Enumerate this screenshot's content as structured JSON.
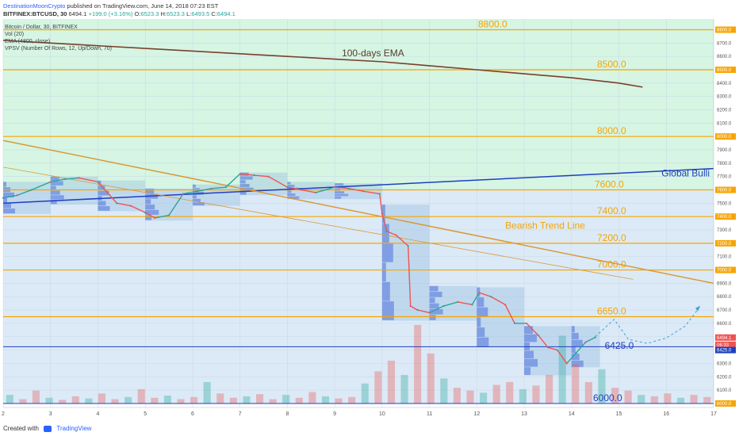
{
  "header": {
    "author": "DestinationMoonCrypto",
    "published": "published on TradingView.com, June 14, 2018 07:23 EST",
    "symbol": "BITFINEX:BTCUSD, 30",
    "last": "6494.1",
    "change": "+199.0 (+3.16%)",
    "o_label": "O:",
    "o": "6523.3",
    "h_label": "H:",
    "h": "6523.3",
    "l_label": "L:",
    "l": "6493.5",
    "c_label": "C:",
    "c": "6494.1"
  },
  "indicators": [
    "Bitcoin / Dollar, 30, BITFINEX",
    "Vol (20)",
    "EMA (4800, close)",
    "VPSV (Number Of Rows, 12, Up/Down, 70)"
  ],
  "footer": {
    "created": "Created with",
    "brand": "TradingView"
  },
  "colors": {
    "level_line": "#f7a400",
    "support_line": "#1f3fbf",
    "ema": "#7b3f2b",
    "trend": "#d99a3a",
    "up": "#26a69a",
    "down": "#ef5350",
    "upper_zone": "#d6f5e3",
    "lower_zone": "#dbeaf6"
  },
  "chart_data": {
    "type": "line",
    "title": "",
    "xlabel": "",
    "ylabel": "",
    "x_ticks": [
      "2",
      "3",
      "4",
      "5",
      "6",
      "7",
      "8",
      "9",
      "10",
      "11",
      "12",
      "13",
      "14",
      "15",
      "16",
      "17"
    ],
    "y_ticks": [
      "6000.0",
      "6100.0",
      "6200.0",
      "6300.0",
      "6400.0",
      "6500.0",
      "6600.0",
      "6700.0",
      "6800.0",
      "6900.0",
      "7000.0",
      "7100.0",
      "7200.0",
      "7300.0",
      "7400.0",
      "7500.0",
      "7600.0",
      "7700.0",
      "7800.0",
      "7900.0",
      "8000.0",
      "8100.0",
      "8200.0",
      "8300.0",
      "8400.0",
      "8500.0",
      "8600.0",
      "8700.0",
      "8800.0"
    ],
    "ylim": [
      5970,
      8880
    ],
    "xlim": [
      2,
      17
    ],
    "levels": [
      {
        "label": "8800.0",
        "value": 8800
      },
      {
        "label": "8500.0",
        "value": 8500
      },
      {
        "label": "8000.0",
        "value": 8000
      },
      {
        "label": "7600.0",
        "value": 7600
      },
      {
        "label": "7400.0",
        "value": 7400
      },
      {
        "label": "7200.0",
        "value": 7200
      },
      {
        "label": "7000.0",
        "value": 7000
      },
      {
        "label": "6650.0",
        "value": 6650
      },
      {
        "label": "6425.0",
        "value": 6425
      },
      {
        "label": "6000.0",
        "value": 6000
      }
    ],
    "price_series": {
      "name": "",
      "x": [
        2.0,
        2.3,
        2.6,
        3.0,
        3.3,
        3.6,
        4.0,
        4.2,
        4.4,
        4.7,
        5.0,
        5.2,
        5.5,
        5.8,
        6.1,
        6.4,
        6.7,
        7.0,
        7.3,
        7.6,
        8.0,
        8.3,
        8.6,
        9.0,
        9.3,
        9.6,
        9.95,
        10.0,
        10.1,
        10.3,
        10.55,
        10.6,
        10.75,
        11.0,
        11.3,
        11.6,
        11.9,
        12.05,
        12.3,
        12.6,
        12.8,
        13.05,
        13.3,
        13.5,
        13.7,
        13.9,
        14.1,
        14.3,
        14.5
      ],
      "y": [
        7540,
        7560,
        7600,
        7660,
        7680,
        7690,
        7660,
        7580,
        7500,
        7480,
        7430,
        7390,
        7410,
        7570,
        7590,
        7610,
        7620,
        7720,
        7710,
        7700,
        7620,
        7600,
        7580,
        7620,
        7610,
        7590,
        7570,
        7420,
        7290,
        7260,
        7180,
        6730,
        6700,
        6680,
        6730,
        6760,
        6740,
        6830,
        6800,
        6740,
        6600,
        6600,
        6510,
        6420,
        6400,
        6300,
        6380,
        6460,
        6495
      ]
    },
    "ema": {
      "name": "100-days EMA",
      "x": [
        2,
        3,
        4,
        5,
        6,
        7,
        8,
        9,
        10,
        11,
        12,
        13,
        14,
        15,
        15.5
      ],
      "y": [
        8720,
        8700,
        8680,
        8660,
        8640,
        8620,
        8600,
        8580,
        8560,
        8530,
        8500,
        8470,
        8440,
        8400,
        8370
      ]
    },
    "trendlines": [
      {
        "name": "Global Bullish",
        "x": [
          2,
          17
        ],
        "y": [
          7500,
          7760
        ]
      },
      {
        "name": "Bearish Trend Line",
        "x": [
          2,
          17
        ],
        "y": [
          7970,
          6900
        ]
      },
      {
        "name": "",
        "x": [
          2,
          15.3
        ],
        "y": [
          7770,
          6930
        ]
      }
    ],
    "projection": {
      "x": [
        14.5,
        14.9,
        15.2,
        15.6,
        16.0,
        16.4,
        16.7
      ],
      "y": [
        6500,
        6630,
        6480,
        6450,
        6490,
        6580,
        6720
      ]
    },
    "annotations": [
      {
        "text": "100-days EMA",
        "x": 9.15,
        "y": 8600,
        "color": "#5b3a2a"
      },
      {
        "text": "Global Bulli",
        "x": 15.9,
        "y": 7700,
        "color": "#1f3fbf"
      },
      {
        "text": "Bearish Trend Line",
        "x": 12.6,
        "y": 7310,
        "color": "#f7a400"
      },
      {
        "text": "6425.0",
        "x": 14.7,
        "y": 6410,
        "color": "#1f3fbf"
      }
    ],
    "markers": [
      {
        "label": "6494.1",
        "value": 6494,
        "color": "#ef5350"
      },
      {
        "label": "06:33",
        "value": 6440,
        "color": "#ef5350"
      },
      {
        "label": "6425.0",
        "value": 6400,
        "color": "#1f3fbf"
      }
    ],
    "volume": [
      12,
      6,
      18,
      8,
      5,
      10,
      7,
      14,
      6,
      9,
      20,
      8,
      11,
      6,
      9,
      30,
      14,
      8,
      10,
      13,
      6,
      12,
      8,
      16,
      10,
      7,
      9,
      28,
      45,
      60,
      40,
      110,
      70,
      35,
      22,
      18,
      15,
      26,
      30,
      20,
      25,
      40,
      95,
      55,
      30,
      48,
      22,
      18,
      12,
      10,
      14,
      8,
      12,
      9
    ],
    "vp_zones": [
      {
        "x0": 2.0,
        "x1": 3.0,
        "y0": 7420,
        "y1": 7660
      },
      {
        "x0": 3.0,
        "x1": 4.0,
        "y0": 7490,
        "y1": 7700
      },
      {
        "x0": 4.0,
        "x1": 5.0,
        "y0": 7440,
        "y1": 7670
      },
      {
        "x0": 5.0,
        "x1": 6.0,
        "y0": 7370,
        "y1": 7610
      },
      {
        "x0": 6.0,
        "x1": 7.0,
        "y0": 7480,
        "y1": 7640
      },
      {
        "x0": 7.0,
        "x1": 8.0,
        "y0": 7560,
        "y1": 7730
      },
      {
        "x0": 8.0,
        "x1": 9.0,
        "y0": 7530,
        "y1": 7660
      },
      {
        "x0": 9.0,
        "x1": 10.0,
        "y0": 7530,
        "y1": 7650
      },
      {
        "x0": 10.0,
        "x1": 11.0,
        "y0": 6620,
        "y1": 7490
      },
      {
        "x0": 11.0,
        "x1": 12.0,
        "y0": 6620,
        "y1": 6880
      },
      {
        "x0": 12.0,
        "x1": 13.0,
        "y0": 6420,
        "y1": 6870
      },
      {
        "x0": 13.0,
        "x1": 14.0,
        "y0": 6210,
        "y1": 6580
      },
      {
        "x0": 14.0,
        "x1": 14.6,
        "y0": 6270,
        "y1": 6580
      }
    ]
  }
}
